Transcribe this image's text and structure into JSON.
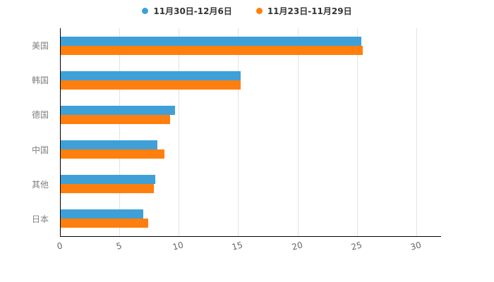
{
  "chart_data": {
    "type": "bar",
    "orientation": "horizontal",
    "title": "",
    "categories": [
      "美国",
      "韩国",
      "德国",
      "中国",
      "其他",
      "日本"
    ],
    "series": [
      {
        "name": "11月30日-12月6日",
        "color": "#3FA0D8",
        "values": [
          25.4,
          15.2,
          9.7,
          8.2,
          8.0,
          7.0
        ]
      },
      {
        "name": "11月23日-11月29日",
        "color": "#FF7F0E",
        "values": [
          25.5,
          15.2,
          9.3,
          8.8,
          7.9,
          7.4
        ]
      }
    ],
    "xlim": [
      0,
      30
    ],
    "xticks": [
      0,
      5,
      10,
      15,
      20,
      25,
      30
    ],
    "grid": true,
    "legend_position": "top",
    "colors": {
      "axis": "#000000",
      "gridline": "#e3e3e3",
      "category_label": "#808080",
      "tick_label": "#666666",
      "legend_text": "#333333",
      "background": "#ffffff"
    }
  }
}
